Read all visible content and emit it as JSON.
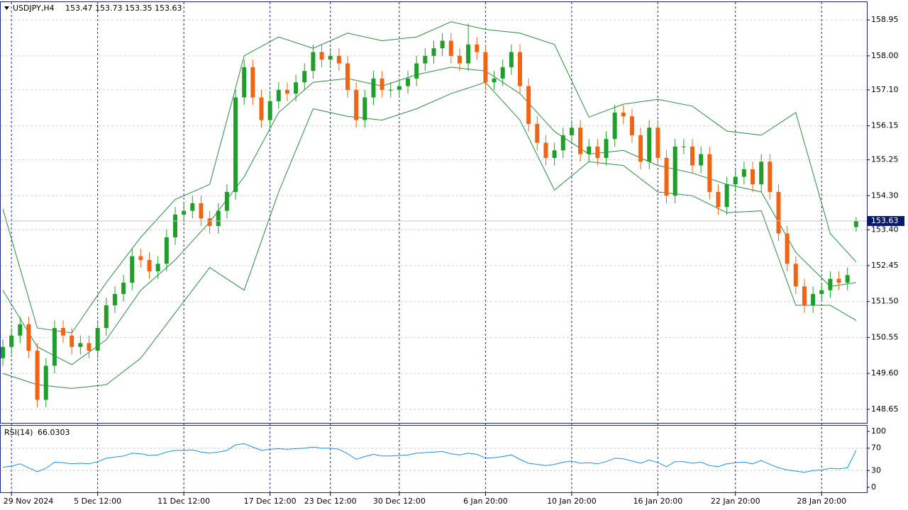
{
  "chart_data": [
    {
      "type": "candlestick",
      "title": "USDJPY,H4",
      "categories": [
        null,
        "29 Nov 2024",
        null,
        null,
        null,
        null,
        null,
        null,
        null,
        null,
        null,
        "5 Dec 12:00",
        null,
        null,
        null,
        null,
        null,
        null,
        null,
        null,
        null,
        "11 Dec 12:00",
        null,
        null,
        null,
        null,
        null,
        null,
        null,
        null,
        null,
        "17 Dec 12:00",
        null,
        null,
        null,
        null,
        null,
        null,
        "23 Dec 12:00",
        null,
        null,
        null,
        null,
        null,
        null,
        null,
        "30 Dec 12:00",
        null,
        null,
        null,
        null,
        null,
        null,
        null,
        null,
        null,
        "6 Jan 20:00",
        null,
        null,
        null,
        null,
        null,
        null,
        null,
        null,
        null,
        "10 Jan 20:00",
        null,
        null,
        null,
        null,
        null,
        null,
        null,
        null,
        null,
        "16 Jan 20:00",
        null,
        null,
        null,
        null,
        null,
        null,
        null,
        null,
        "22 Jan 20:00",
        null,
        null,
        null,
        null,
        null,
        null,
        null,
        null,
        null,
        "28 Jan 20:00",
        null,
        null,
        null,
        null
      ],
      "open": [
        150.0,
        150.3,
        150.6,
        150.9,
        150.2,
        148.9,
        149.8,
        150.8,
        150.6,
        150.3,
        150.4,
        150.2,
        150.8,
        151.4,
        151.7,
        152.0,
        152.7,
        152.6,
        152.3,
        152.5,
        153.2,
        153.8,
        153.9,
        154.1,
        153.7,
        153.5,
        153.9,
        154.4,
        156.9,
        157.7,
        156.9,
        156.3,
        156.8,
        157.1,
        157.0,
        157.3,
        157.6,
        158.1,
        157.9,
        158.0,
        157.8,
        157.1,
        156.3,
        156.9,
        157.4,
        157.1,
        157.1,
        157.2,
        157.4,
        157.8,
        158.0,
        158.2,
        158.4,
        158.0,
        157.8,
        158.3,
        158.1,
        157.3,
        157.4,
        157.7,
        158.1,
        157.2,
        156.2,
        155.7,
        155.3,
        155.5,
        155.9,
        156.1,
        155.4,
        155.6,
        155.3,
        155.8,
        156.5,
        156.4,
        155.9,
        155.2,
        156.1,
        155.3,
        154.3,
        155.6,
        155.6,
        155.1,
        155.4,
        154.4,
        154.0,
        154.6,
        154.8,
        155.0,
        154.6,
        155.2,
        154.4,
        153.3,
        152.5,
        151.9,
        151.4,
        151.7,
        151.8,
        152.1,
        152.0,
        153.47
      ],
      "high": [
        150.5,
        150.8,
        151.1,
        151.1,
        150.4,
        150.0,
        151.0,
        151.0,
        150.8,
        150.6,
        150.6,
        151.0,
        151.6,
        151.9,
        152.2,
        152.9,
        152.9,
        152.8,
        152.7,
        153.4,
        154.0,
        154.1,
        154.3,
        154.3,
        153.9,
        154.1,
        154.6,
        157.1,
        157.9,
        157.9,
        157.1,
        157.0,
        157.3,
        157.3,
        157.5,
        157.8,
        158.3,
        158.3,
        158.2,
        158.2,
        158.0,
        157.3,
        157.1,
        157.6,
        157.6,
        157.3,
        157.4,
        157.6,
        158.0,
        158.2,
        158.4,
        158.6,
        158.6,
        158.2,
        158.85,
        158.5,
        158.3,
        157.6,
        157.9,
        158.3,
        158.3,
        157.4,
        156.4,
        155.9,
        155.7,
        156.1,
        156.3,
        156.3,
        155.8,
        155.8,
        156.0,
        156.7,
        156.7,
        156.6,
        156.1,
        156.3,
        156.3,
        155.5,
        155.8,
        155.8,
        155.8,
        155.6,
        155.6,
        154.6,
        154.8,
        155.0,
        155.2,
        155.2,
        155.4,
        155.4,
        154.6,
        153.5,
        152.7,
        152.1,
        151.9,
        152.0,
        152.3,
        152.3,
        152.4,
        153.73
      ],
      "low": [
        149.8,
        150.1,
        150.4,
        150.0,
        148.7,
        148.7,
        149.6,
        150.4,
        150.1,
        150.1,
        150.0,
        150.0,
        150.6,
        151.2,
        151.5,
        151.8,
        152.4,
        152.1,
        152.1,
        152.3,
        153.0,
        153.6,
        153.7,
        153.5,
        153.3,
        153.3,
        153.7,
        154.2,
        156.7,
        156.7,
        156.1,
        156.1,
        156.6,
        156.8,
        156.8,
        157.1,
        157.4,
        157.7,
        157.7,
        157.6,
        156.9,
        156.1,
        156.1,
        156.7,
        156.9,
        156.9,
        156.9,
        157.0,
        157.2,
        157.6,
        157.8,
        158.0,
        157.8,
        157.6,
        157.6,
        157.9,
        157.1,
        157.1,
        157.2,
        157.5,
        157.0,
        156.0,
        155.5,
        155.1,
        155.1,
        155.3,
        155.7,
        155.2,
        155.2,
        155.1,
        155.1,
        155.6,
        156.2,
        155.7,
        155.0,
        155.0,
        155.1,
        154.1,
        154.1,
        155.4,
        154.9,
        154.9,
        154.2,
        153.8,
        153.8,
        154.4,
        154.6,
        154.4,
        154.4,
        154.2,
        153.1,
        152.3,
        151.7,
        151.2,
        151.2,
        151.5,
        151.6,
        151.8,
        151.8,
        153.35
      ],
      "close": [
        150.3,
        150.6,
        150.9,
        150.2,
        148.9,
        149.8,
        150.8,
        150.6,
        150.3,
        150.4,
        150.2,
        150.8,
        151.4,
        151.7,
        152.0,
        152.7,
        152.6,
        152.3,
        152.5,
        153.2,
        153.8,
        153.9,
        154.1,
        153.7,
        153.5,
        153.9,
        154.4,
        156.9,
        157.7,
        156.9,
        156.3,
        156.8,
        157.1,
        157.0,
        157.3,
        157.6,
        158.1,
        157.9,
        158.0,
        157.8,
        157.1,
        156.3,
        156.9,
        157.4,
        157.1,
        157.1,
        157.2,
        157.4,
        157.8,
        158.0,
        158.2,
        158.4,
        158.0,
        157.8,
        158.3,
        158.1,
        157.3,
        157.4,
        157.7,
        158.1,
        157.2,
        156.2,
        155.7,
        155.3,
        155.5,
        155.9,
        156.1,
        155.4,
        155.6,
        155.3,
        155.8,
        156.5,
        156.4,
        155.9,
        155.2,
        156.1,
        155.3,
        154.3,
        155.6,
        155.6,
        155.1,
        155.4,
        154.4,
        154.0,
        154.6,
        154.8,
        155.0,
        154.6,
        155.2,
        154.4,
        153.3,
        152.5,
        151.9,
        151.4,
        151.7,
        151.8,
        152.1,
        152.0,
        152.2,
        153.63
      ],
      "up_color": "#1f9e2c",
      "down_color": "#f06414",
      "overlays": [
        {
          "color": "#2e8b3e",
          "x": [
            0,
            4,
            8,
            12,
            16,
            20,
            24,
            28,
            32,
            36,
            40,
            44,
            48,
            52,
            56,
            60,
            64,
            68,
            72,
            76,
            80,
            84,
            88,
            92,
            96,
            99
          ],
          "values": [
            153.95,
            150.8,
            150.67,
            152.0,
            153.2,
            154.2,
            154.6,
            158.0,
            158.5,
            158.2,
            158.6,
            158.4,
            158.5,
            158.9,
            158.7,
            158.6,
            158.3,
            156.38,
            156.72,
            156.85,
            156.67,
            156.01,
            155.9,
            156.5,
            153.3,
            152.55
          ]
        },
        {
          "color": "#2e8b3e",
          "x": [
            0,
            4,
            8,
            12,
            16,
            20,
            24,
            28,
            32,
            36,
            40,
            44,
            48,
            52,
            56,
            60,
            64,
            68,
            72,
            76,
            80,
            84,
            88,
            92,
            96,
            99
          ],
          "values": [
            151.8,
            150.3,
            149.83,
            150.49,
            151.8,
            152.6,
            153.6,
            154.8,
            156.5,
            157.3,
            157.4,
            157.2,
            157.5,
            157.7,
            157.6,
            157.0,
            156.0,
            155.4,
            155.5,
            155.1,
            154.9,
            154.6,
            154.4,
            152.8,
            151.9,
            152.0
          ]
        },
        {
          "color": "#2e8b3e",
          "x": [
            0,
            4,
            8,
            12,
            16,
            20,
            24,
            28,
            32,
            36,
            40,
            44,
            48,
            52,
            56,
            60,
            64,
            68,
            72,
            76,
            80,
            84,
            88,
            92,
            96,
            99
          ],
          "values": [
            149.6,
            149.3,
            149.2,
            149.3,
            150.0,
            151.2,
            152.4,
            151.8,
            154.4,
            156.6,
            156.4,
            156.3,
            156.6,
            157.0,
            157.3,
            156.3,
            154.45,
            155.2,
            155.1,
            154.4,
            154.3,
            153.85,
            153.9,
            151.4,
            151.4,
            151.0
          ]
        }
      ],
      "ylim": [
        148.29,
        159.44
      ],
      "yticks": [
        158.95,
        {
          "value": 158,
          "label": "158.00"
        },
        {
          "value": 157.1,
          "label": "157.10"
        },
        156.15,
        155.25,
        {
          "value": 154.3,
          "label": "154.30"
        },
        {
          "value": 153.4,
          "label": "153.40"
        },
        152.45,
        {
          "value": 151.5,
          "label": "151.50"
        },
        150.55,
        {
          "value": 149.6,
          "label": "149.60"
        },
        148.65
      ],
      "grid": true
    },
    {
      "type": "line",
      "title": "RSI(14)",
      "color": "#1e8fe6",
      "values": [
        36,
        38,
        42,
        35,
        28,
        34,
        45,
        44,
        42,
        43,
        42,
        46,
        52,
        54,
        56,
        61,
        60,
        57,
        58,
        63,
        66,
        66,
        67,
        63,
        61,
        63,
        66,
        76,
        78,
        72,
        66,
        68,
        69,
        68,
        69,
        70,
        72,
        70,
        70,
        68,
        60,
        50,
        55,
        59,
        56,
        56,
        57,
        58,
        61,
        62,
        63,
        64,
        60,
        58,
        61,
        59,
        52,
        53,
        55,
        58,
        50,
        43,
        41,
        39,
        41,
        45,
        47,
        43,
        44,
        42,
        46,
        52,
        51,
        47,
        43,
        49,
        44,
        37,
        46,
        46,
        43,
        45,
        39,
        37,
        42,
        44,
        45,
        42,
        48,
        41,
        35,
        31,
        29,
        27,
        30,
        31,
        34,
        33,
        35,
        66.0303
      ],
      "ylim": [
        0,
        100
      ],
      "yticks": [
        100,
        70,
        30,
        0
      ],
      "grid": true
    }
  ]
}
